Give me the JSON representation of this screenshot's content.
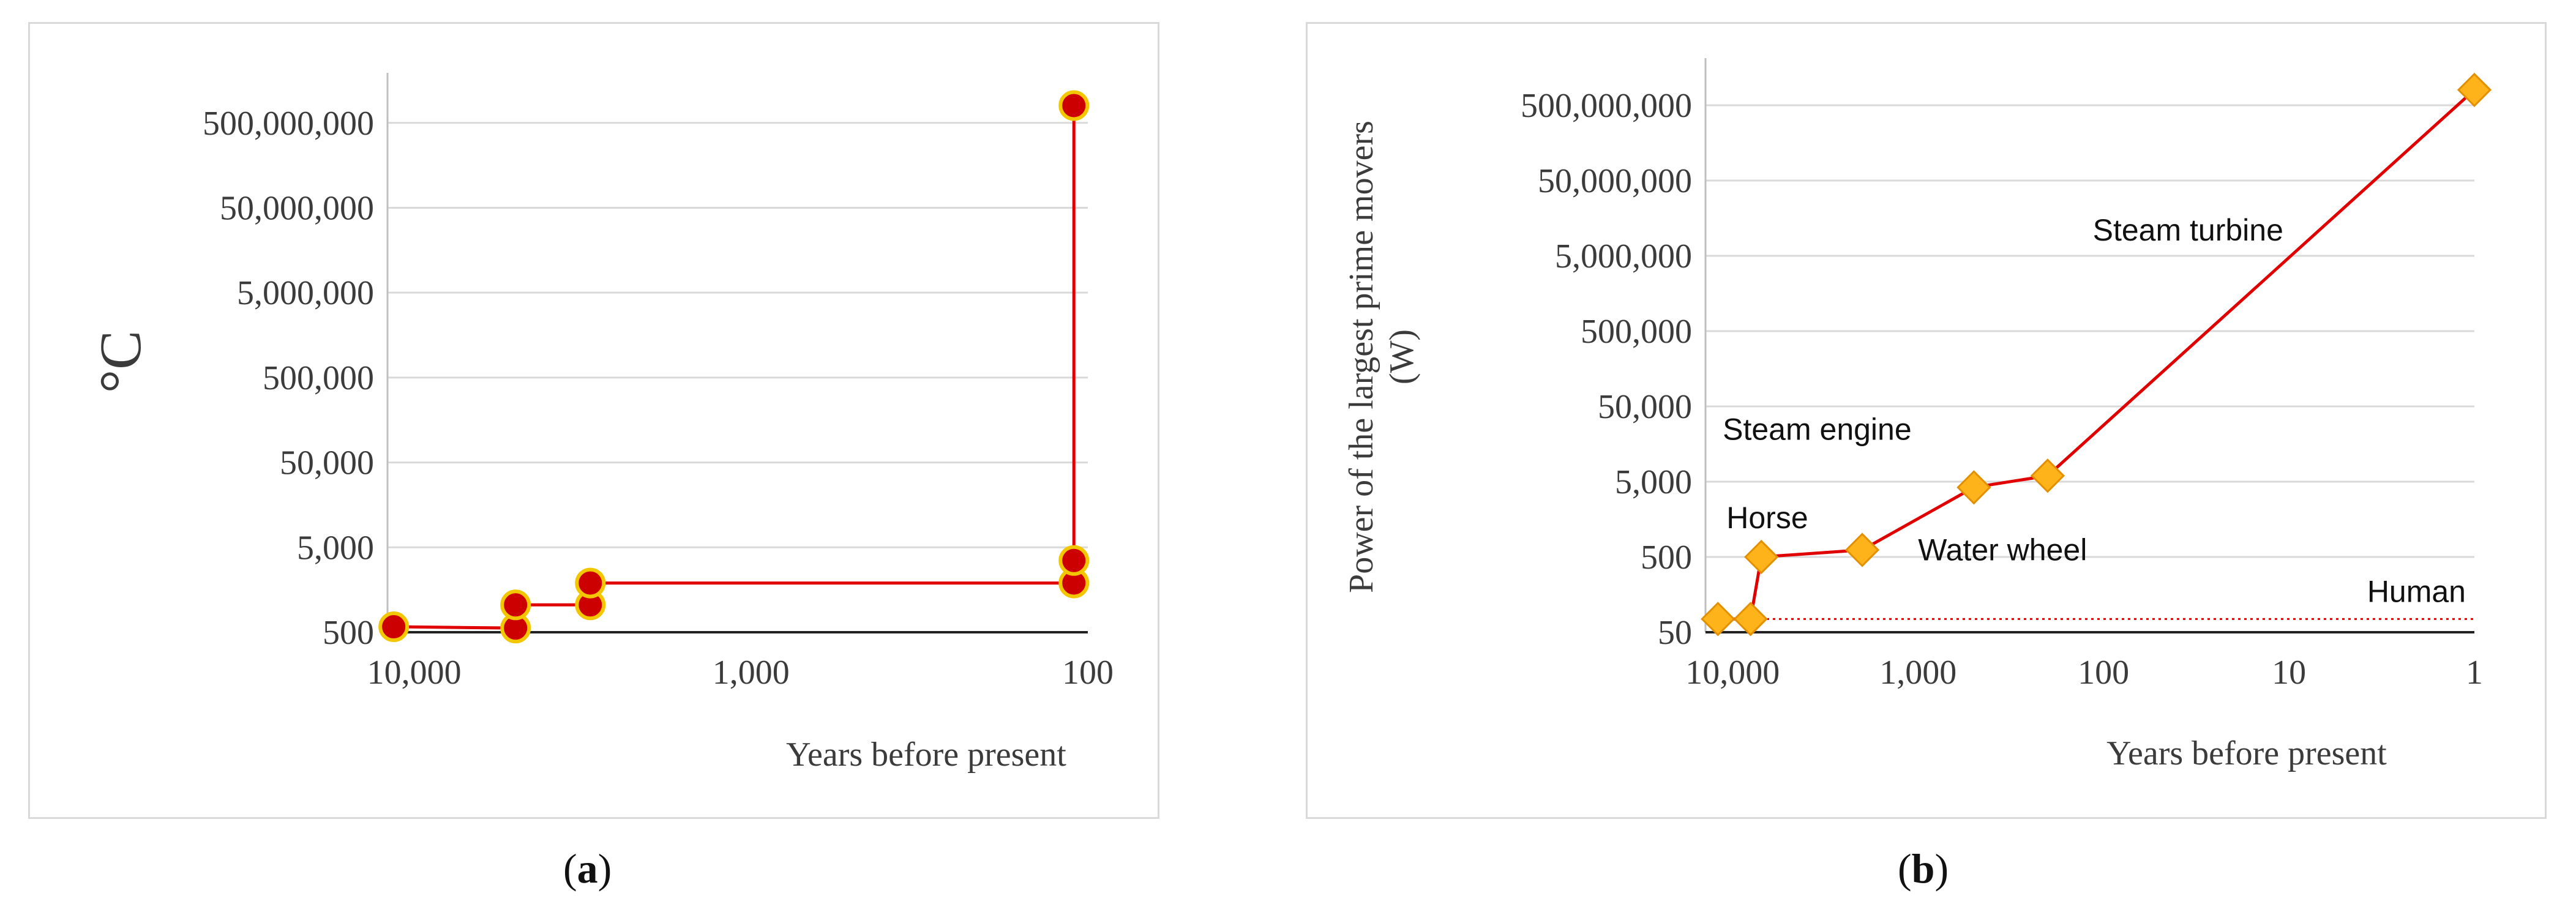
{
  "chart_data": [
    {
      "type": "scatter",
      "panel_label": "a",
      "xlabel": "Years before present",
      "ylabel": "°C",
      "x_scale": "log-reversed",
      "y_scale": "log",
      "xlim": [
        12000,
        100
      ],
      "ylim": [
        500,
        1000000000
      ],
      "xticks": [
        10000,
        1000,
        100
      ],
      "xtick_labels": [
        "10,000",
        "1,000",
        "100"
      ],
      "yticks": [
        500,
        5000,
        50000,
        500000,
        5000000,
        50000000,
        500000000
      ],
      "ytick_labels": [
        "500",
        "5,000",
        "50,000",
        "500,000",
        "5,000,000",
        "50,000,000",
        "500,000,000"
      ],
      "grid": true,
      "step_line": true,
      "series": [
        {
          "x": [
            11500,
            5000,
            5000,
            3000,
            3000,
            110,
            110,
            110
          ],
          "y": [
            580,
            560,
            1050,
            1050,
            1900,
            1900,
            3500,
            800000000
          ],
          "color": "#e00000"
        }
      ]
    },
    {
      "type": "line",
      "panel_label": "b",
      "xlabel": "Years before present",
      "ylabel": "Power of the largest prime movers (W)",
      "x_scale": "log-reversed",
      "y_scale": "log",
      "xlim": [
        14000,
        1
      ],
      "ylim": [
        50,
        1000000000
      ],
      "xticks": [
        10000,
        1000,
        100,
        10,
        1
      ],
      "xtick_labels": [
        "10,000",
        "1,000",
        "100",
        "10",
        "1"
      ],
      "yticks": [
        50,
        500,
        5000,
        50000,
        500000,
        5000000,
        50000000,
        500000000
      ],
      "ytick_labels": [
        "50",
        "500",
        "5,000",
        "50,000",
        "500,000",
        "5,000,000",
        "50,000,000",
        "500,000,000"
      ],
      "grid": true,
      "series": [
        {
          "x": [
            12000,
            8000,
            7000,
            2000,
            500,
            200,
            1
          ],
          "y": [
            75,
            75,
            500,
            620,
            4200,
            6000,
            800000000
          ],
          "color": "#e00000",
          "marker_color": "#ffb31a"
        }
      ],
      "reference_line": {
        "y": 75,
        "label": "Human",
        "color": "#e00000"
      },
      "annotations": [
        {
          "text": "Horse",
          "x": 6500,
          "y": 1200
        },
        {
          "text": "Steam engine",
          "x": 3500,
          "y": 18000
        },
        {
          "text": "Water wheel",
          "x": 350,
          "y": 450
        },
        {
          "text": "Steam turbine",
          "x": 35,
          "y": 8000000
        }
      ]
    }
  ],
  "subfigure_labels": [
    "a",
    "b"
  ]
}
